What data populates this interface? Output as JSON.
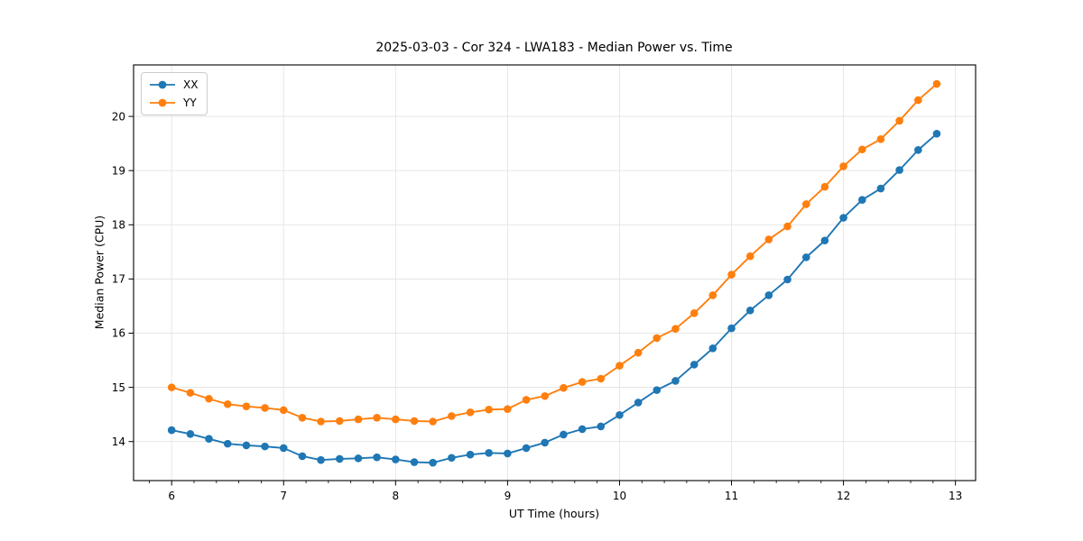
{
  "chart_data": {
    "type": "line",
    "title": "2025-03-03 - Cor 324 - LWA183 - Median Power vs. Time",
    "xlabel": "UT Time (hours)",
    "ylabel": "Median Power (CPU)",
    "xlim": [
      5.66,
      13.18
    ],
    "ylim": [
      13.28,
      20.95
    ],
    "x_ticks": [
      6,
      7,
      8,
      9,
      10,
      11,
      12,
      13
    ],
    "y_ticks": [
      14,
      15,
      16,
      17,
      18,
      19,
      20
    ],
    "x_minor_tick_step": 0.2,
    "grid": true,
    "grid_color": "#e3e3e3",
    "legend_position": "upper-left",
    "marker": "circle",
    "x": [
      6.0,
      6.167,
      6.333,
      6.5,
      6.667,
      6.833,
      7.0,
      7.167,
      7.333,
      7.5,
      7.667,
      7.833,
      8.0,
      8.167,
      8.333,
      8.5,
      8.667,
      8.833,
      9.0,
      9.167,
      9.333,
      9.5,
      9.667,
      9.833,
      10.0,
      10.167,
      10.333,
      10.5,
      10.667,
      10.833,
      11.0,
      11.167,
      11.333,
      11.5,
      11.667,
      11.833,
      12.0,
      12.167,
      12.333,
      12.5,
      12.667,
      12.833
    ],
    "series": [
      {
        "name": "XX",
        "color": "#1f77b4",
        "values": [
          14.21,
          14.14,
          14.05,
          13.96,
          13.93,
          13.91,
          13.88,
          13.73,
          13.66,
          13.68,
          13.69,
          13.71,
          13.67,
          13.62,
          13.61,
          13.7,
          13.76,
          13.79,
          13.78,
          13.88,
          13.98,
          14.13,
          14.23,
          14.28,
          14.49,
          14.72,
          14.95,
          15.12,
          15.42,
          15.72,
          16.09,
          16.42,
          16.7,
          16.99,
          17.4,
          17.71,
          18.13,
          18.46,
          18.67,
          19.01,
          19.38,
          19.68
        ]
      },
      {
        "name": "YY",
        "color": "#ff7f0e",
        "values": [
          15.0,
          14.9,
          14.79,
          14.69,
          14.65,
          14.62,
          14.58,
          14.44,
          14.37,
          14.38,
          14.41,
          14.44,
          14.41,
          14.38,
          14.37,
          14.47,
          14.54,
          14.59,
          14.6,
          14.77,
          14.84,
          14.99,
          15.1,
          15.16,
          15.4,
          15.64,
          15.91,
          16.08,
          16.37,
          16.7,
          17.08,
          17.42,
          17.73,
          17.97,
          18.38,
          18.7,
          19.08,
          19.39,
          19.58,
          19.92,
          20.3,
          20.6
        ]
      }
    ]
  }
}
